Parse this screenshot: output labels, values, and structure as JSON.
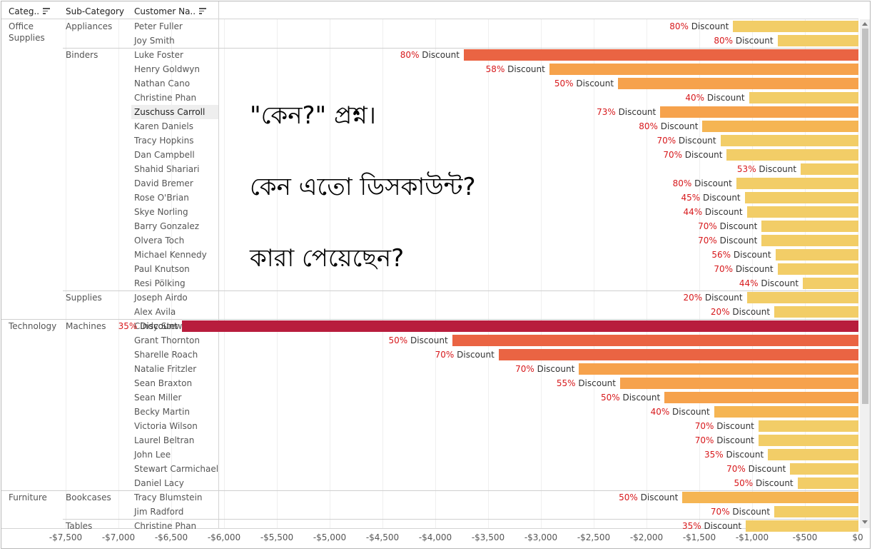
{
  "headers": {
    "category": "Categ..",
    "subcategory": "Sub-Category",
    "customer": "Customer Na.."
  },
  "icons": {
    "sort_category": "sort-icon",
    "sort_customer": "sort-icon"
  },
  "annotation": [
    "\"কেন?\" প্রশ্ন।",
    "কেন এতো ডিসকাউন্ট?",
    "কারা পেয়েছেন?"
  ],
  "colors": {
    "low": "#f2cd67",
    "mid": "#f6a24c",
    "high": "#ea6443",
    "max": "#b81d3d"
  },
  "chart_data": {
    "type": "bar",
    "orientation": "horizontal",
    "xlim": [
      -7800,
      0
    ],
    "x_ticks": [
      "-$7,500",
      "-$7,000",
      "-$6,500",
      "-$6,000",
      "-$5,500",
      "-$5,000",
      "-$4,500",
      "-$4,000",
      "-$3,500",
      "-$3,000",
      "-$2,500",
      "-$2,000",
      "-$1,500",
      "-$1,000",
      "-$500",
      "$0"
    ],
    "x_tick_values": [
      -7500,
      -7000,
      -6500,
      -6000,
      -5500,
      -5000,
      -4500,
      -4000,
      -3500,
      -3000,
      -2500,
      -2000,
      -1500,
      -1000,
      -500,
      0
    ],
    "label_suffix": "Discount",
    "groups": [
      {
        "category": "Office Supplies",
        "subcategories": [
          {
            "name": "Appliances",
            "rows": [
              {
                "customer": "Peter Fuller",
                "value": -1180,
                "discount": "80%"
              },
              {
                "customer": "Joy Smith",
                "value": -760,
                "discount": "80%"
              }
            ]
          },
          {
            "name": "Binders",
            "rows": [
              {
                "customer": "Luke Foster",
                "value": -3730,
                "discount": "80%"
              },
              {
                "customer": "Henry Goldwyn",
                "value": -2920,
                "discount": "58%"
              },
              {
                "customer": "Nathan Cano",
                "value": -2270,
                "discount": "50%"
              },
              {
                "customer": "Christine Phan",
                "value": -1030,
                "discount": "40%"
              },
              {
                "customer": "Zuschuss Carroll",
                "value": -1870,
                "discount": "73%",
                "highlight": true
              },
              {
                "customer": "Karen Daniels",
                "value": -1470,
                "discount": "80%"
              },
              {
                "customer": "Tracy Hopkins",
                "value": -1300,
                "discount": "70%"
              },
              {
                "customer": "Dan Campbell",
                "value": -1240,
                "discount": "70%"
              },
              {
                "customer": "Shahid Shariari",
                "value": -540,
                "discount": "53%"
              },
              {
                "customer": "David Bremer",
                "value": -1150,
                "discount": "80%"
              },
              {
                "customer": "Rose O'Brian",
                "value": -1070,
                "discount": "45%"
              },
              {
                "customer": "Skye Norling",
                "value": -1050,
                "discount": "44%"
              },
              {
                "customer": "Barry Gonzalez",
                "value": -910,
                "discount": "70%"
              },
              {
                "customer": "Olvera Toch",
                "value": -910,
                "discount": "70%"
              },
              {
                "customer": "Michael Kennedy",
                "value": -780,
                "discount": "56%"
              },
              {
                "customer": "Paul Knutson",
                "value": -760,
                "discount": "70%"
              },
              {
                "customer": "Resi Pölking",
                "value": -520,
                "discount": "44%"
              }
            ]
          },
          {
            "name": "Supplies",
            "rows": [
              {
                "customer": "Joseph Airdo",
                "value": -1050,
                "discount": "20%"
              },
              {
                "customer": "Alex Avila",
                "value": -790,
                "discount": "20%"
              }
            ]
          }
        ]
      },
      {
        "category": "Technology",
        "subcategories": [
          {
            "name": "Machines",
            "rows": [
              {
                "customer": "Cindy Stewart",
                "value": -6400,
                "discount": "35%"
              },
              {
                "customer": "Grant Thornton",
                "value": -3840,
                "discount": "50%"
              },
              {
                "customer": "Sharelle Roach",
                "value": -3400,
                "discount": "70%"
              },
              {
                "customer": "Natalie Fritzler",
                "value": -2640,
                "discount": "70%"
              },
              {
                "customer": "Sean Braxton",
                "value": -2250,
                "discount": "55%"
              },
              {
                "customer": "Sean Miller",
                "value": -1830,
                "discount": "50%"
              },
              {
                "customer": "Becky Martin",
                "value": -1360,
                "discount": "40%"
              },
              {
                "customer": "Victoria Wilson",
                "value": -940,
                "discount": "70%"
              },
              {
                "customer": "Laurel Beltran",
                "value": -940,
                "discount": "70%"
              },
              {
                "customer": "John Lee",
                "value": -850,
                "discount": "35%"
              },
              {
                "customer": "Stewart Carmichael",
                "value": -640,
                "discount": "70%"
              },
              {
                "customer": "Daniel Lacy",
                "value": -570,
                "discount": "50%"
              }
            ]
          }
        ]
      },
      {
        "category": "Furniture",
        "subcategories": [
          {
            "name": "Bookcases",
            "rows": [
              {
                "customer": "Tracy Blumstein",
                "value": -1660,
                "discount": "50%"
              },
              {
                "customer": "Jim Radford",
                "value": -790,
                "discount": "70%"
              }
            ]
          },
          {
            "name": "Tables",
            "rows": [
              {
                "customer": "Christine Phan",
                "value": -1060,
                "discount": "35%"
              }
            ]
          }
        ]
      }
    ]
  }
}
